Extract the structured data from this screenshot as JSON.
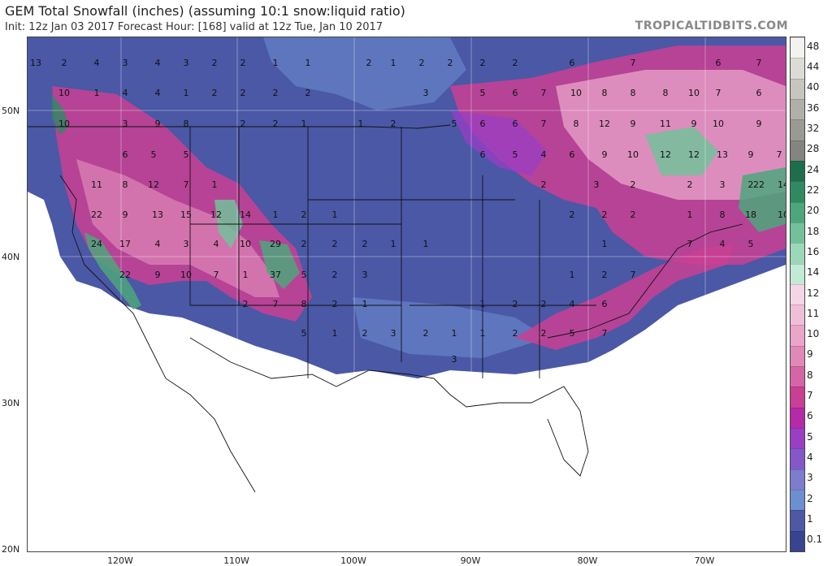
{
  "header": {
    "title": "GEM Total Snowfall (inches) (assuming 10:1 snow:liquid ratio)",
    "subtitle": "Init: 12z Jan 03 2017   Forecast Hour: [168]   valid at 12z Tue, Jan 10 2017",
    "brand": "TROPICALTIDBITS.COM"
  },
  "axes": {
    "lat_labels": [
      "50N",
      "40N",
      "30N",
      "20N"
    ],
    "lon_labels": [
      "120W",
      "110W",
      "100W",
      "90W",
      "80W",
      "70W"
    ]
  },
  "colorbar": {
    "levels": [
      "48",
      "44",
      "40",
      "36",
      "32",
      "28",
      "24",
      "22",
      "20",
      "18",
      "16",
      "14",
      "12",
      "11",
      "10",
      "9",
      "8",
      "7",
      "6",
      "5",
      "4",
      "3",
      "2",
      "1",
      "0.1"
    ],
    "colors": [
      "#f2f2ee",
      "#dcdcd4",
      "#c6c6be",
      "#b0b0a8",
      "#9a9a94",
      "#848480",
      "#1d6e4c",
      "#2f8a62",
      "#4ea67c",
      "#72c19a",
      "#9ad8b8",
      "#c2ead6",
      "#f4d6e6",
      "#efbfd8",
      "#e9a6c9",
      "#e088b8",
      "#d565a6",
      "#c93f93",
      "#b52aa6",
      "#9a3ec4",
      "#8558c8",
      "#7d7ccd",
      "#6e8fcf",
      "#4f58a4",
      "#38448f"
    ]
  },
  "map": {
    "amounts": [
      {
        "v": "13"
      },
      {
        "v": "2"
      },
      {
        "v": "4"
      },
      {
        "v": "3"
      },
      {
        "v": "4"
      },
      {
        "v": "3"
      },
      {
        "v": "2"
      },
      {
        "v": "2"
      },
      {
        "v": "1"
      },
      {
        "v": "1"
      },
      {
        "v": "2"
      },
      {
        "v": "1"
      },
      {
        "v": "2"
      },
      {
        "v": "2"
      },
      {
        "v": "2"
      },
      {
        "v": "2"
      },
      {
        "v": "6"
      },
      {
        "v": "7"
      },
      {
        "v": "6"
      },
      {
        "v": "7"
      },
      {
        "v": "10"
      },
      {
        "v": "1"
      },
      {
        "v": "4"
      },
      {
        "v": "4"
      },
      {
        "v": "1"
      },
      {
        "v": "2"
      },
      {
        "v": "2"
      },
      {
        "v": "2"
      },
      {
        "v": "2"
      },
      {
        "v": "3"
      },
      {
        "v": "5"
      },
      {
        "v": "6"
      },
      {
        "v": "7"
      },
      {
        "v": "10"
      },
      {
        "v": "8"
      },
      {
        "v": "8"
      },
      {
        "v": "8"
      },
      {
        "v": "10"
      },
      {
        "v": "7"
      },
      {
        "v": "6"
      },
      {
        "v": "10"
      },
      {
        "v": "3"
      },
      {
        "v": "9"
      },
      {
        "v": "8"
      },
      {
        "v": "2"
      },
      {
        "v": "2"
      },
      {
        "v": "1"
      },
      {
        "v": "1"
      },
      {
        "v": "2"
      },
      {
        "v": "5"
      },
      {
        "v": "6"
      },
      {
        "v": "6"
      },
      {
        "v": "7"
      },
      {
        "v": "8"
      },
      {
        "v": "12"
      },
      {
        "v": "9"
      },
      {
        "v": "11"
      },
      {
        "v": "9"
      },
      {
        "v": "10"
      },
      {
        "v": "9"
      },
      {
        "v": "6"
      },
      {
        "v": "5"
      },
      {
        "v": "5"
      },
      {
        "v": "6"
      },
      {
        "v": "5"
      },
      {
        "v": "4"
      },
      {
        "v": "6"
      },
      {
        "v": "9"
      },
      {
        "v": "10"
      },
      {
        "v": "12"
      },
      {
        "v": "12"
      },
      {
        "v": "13"
      },
      {
        "v": "9"
      },
      {
        "v": "7"
      },
      {
        "v": "11"
      },
      {
        "v": "8"
      },
      {
        "v": "12"
      },
      {
        "v": "7"
      },
      {
        "v": "1"
      },
      {
        "v": "2"
      },
      {
        "v": "3"
      },
      {
        "v": "2"
      },
      {
        "v": "2"
      },
      {
        "v": "3"
      },
      {
        "v": "2"
      },
      {
        "v": "22"
      },
      {
        "v": "14"
      },
      {
        "v": "22"
      },
      {
        "v": "9"
      },
      {
        "v": "13"
      },
      {
        "v": "15"
      },
      {
        "v": "12"
      },
      {
        "v": "14"
      },
      {
        "v": "1"
      },
      {
        "v": "2"
      },
      {
        "v": "1"
      },
      {
        "v": "2"
      },
      {
        "v": "2"
      },
      {
        "v": "2"
      },
      {
        "v": "1"
      },
      {
        "v": "8"
      },
      {
        "v": "18"
      },
      {
        "v": "10"
      },
      {
        "v": "24"
      },
      {
        "v": "17"
      },
      {
        "v": "4"
      },
      {
        "v": "3"
      },
      {
        "v": "4"
      },
      {
        "v": "10"
      },
      {
        "v": "29"
      },
      {
        "v": "2"
      },
      {
        "v": "2"
      },
      {
        "v": "2"
      },
      {
        "v": "1"
      },
      {
        "v": "1"
      },
      {
        "v": "1"
      },
      {
        "v": "7"
      },
      {
        "v": "4"
      },
      {
        "v": "5"
      },
      {
        "v": "22"
      },
      {
        "v": "9"
      },
      {
        "v": "10"
      },
      {
        "v": "7"
      },
      {
        "v": "1"
      },
      {
        "v": "37"
      },
      {
        "v": "5"
      },
      {
        "v": "2"
      },
      {
        "v": "3"
      },
      {
        "v": "1"
      },
      {
        "v": "2"
      },
      {
        "v": "7"
      },
      {
        "v": "2"
      },
      {
        "v": "7"
      },
      {
        "v": "8"
      },
      {
        "v": "2"
      },
      {
        "v": "1"
      },
      {
        "v": "1"
      },
      {
        "v": "2"
      },
      {
        "v": "2"
      },
      {
        "v": "4"
      },
      {
        "v": "6"
      },
      {
        "v": "5"
      },
      {
        "v": "1"
      },
      {
        "v": "2"
      },
      {
        "v": "3"
      },
      {
        "v": "2"
      },
      {
        "v": "1"
      },
      {
        "v": "1"
      },
      {
        "v": "2"
      },
      {
        "v": "2"
      },
      {
        "v": "5"
      },
      {
        "v": "7"
      },
      {
        "v": "3"
      }
    ]
  }
}
